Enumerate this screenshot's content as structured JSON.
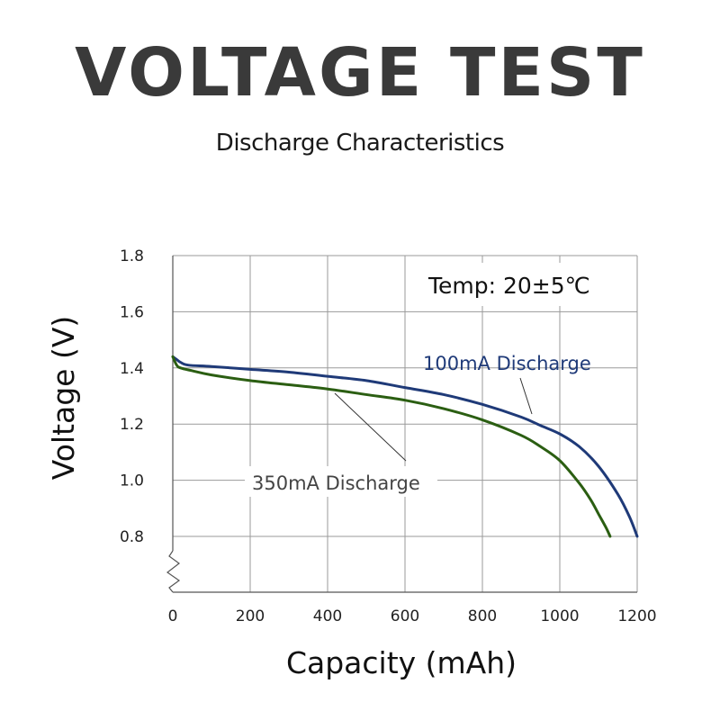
{
  "header": {
    "title": "VOLTAGE TEST",
    "subtitle": "Discharge Characteristics"
  },
  "chart_data": {
    "type": "line",
    "xlabel": "Capacity (mAh)",
    "ylabel": "Voltage (V)",
    "xlim": [
      0,
      1200
    ],
    "ylim": [
      0.8,
      1.8
    ],
    "xticks": [
      0,
      200,
      400,
      600,
      800,
      1000,
      1200
    ],
    "yticks": [
      "0.8",
      "1.0",
      "1.2",
      "1.4",
      "1.6",
      "1.8"
    ],
    "grid": true,
    "axis_break": true,
    "annotation": "Temp: 20±5℃",
    "series": [
      {
        "name": "100mA Discharge",
        "color": "#1f3a78",
        "x": [
          0,
          10,
          20,
          40,
          100,
          200,
          300,
          400,
          500,
          600,
          700,
          800,
          900,
          950,
          1000,
          1050,
          1100,
          1150,
          1180,
          1200
        ],
        "y": [
          1.44,
          1.43,
          1.42,
          1.41,
          1.405,
          1.395,
          1.385,
          1.37,
          1.355,
          1.33,
          1.305,
          1.27,
          1.225,
          1.195,
          1.165,
          1.12,
          1.05,
          0.95,
          0.87,
          0.8
        ]
      },
      {
        "name": "350mA Discharge",
        "color": "#2b5e12",
        "x": [
          0,
          10,
          20,
          50,
          100,
          200,
          300,
          400,
          500,
          600,
          700,
          800,
          900,
          950,
          1000,
          1050,
          1080,
          1100,
          1120,
          1130
        ],
        "y": [
          1.44,
          1.41,
          1.4,
          1.39,
          1.375,
          1.355,
          1.34,
          1.325,
          1.305,
          1.285,
          1.255,
          1.215,
          1.16,
          1.12,
          1.07,
          0.99,
          0.93,
          0.88,
          0.83,
          0.8
        ]
      }
    ]
  }
}
